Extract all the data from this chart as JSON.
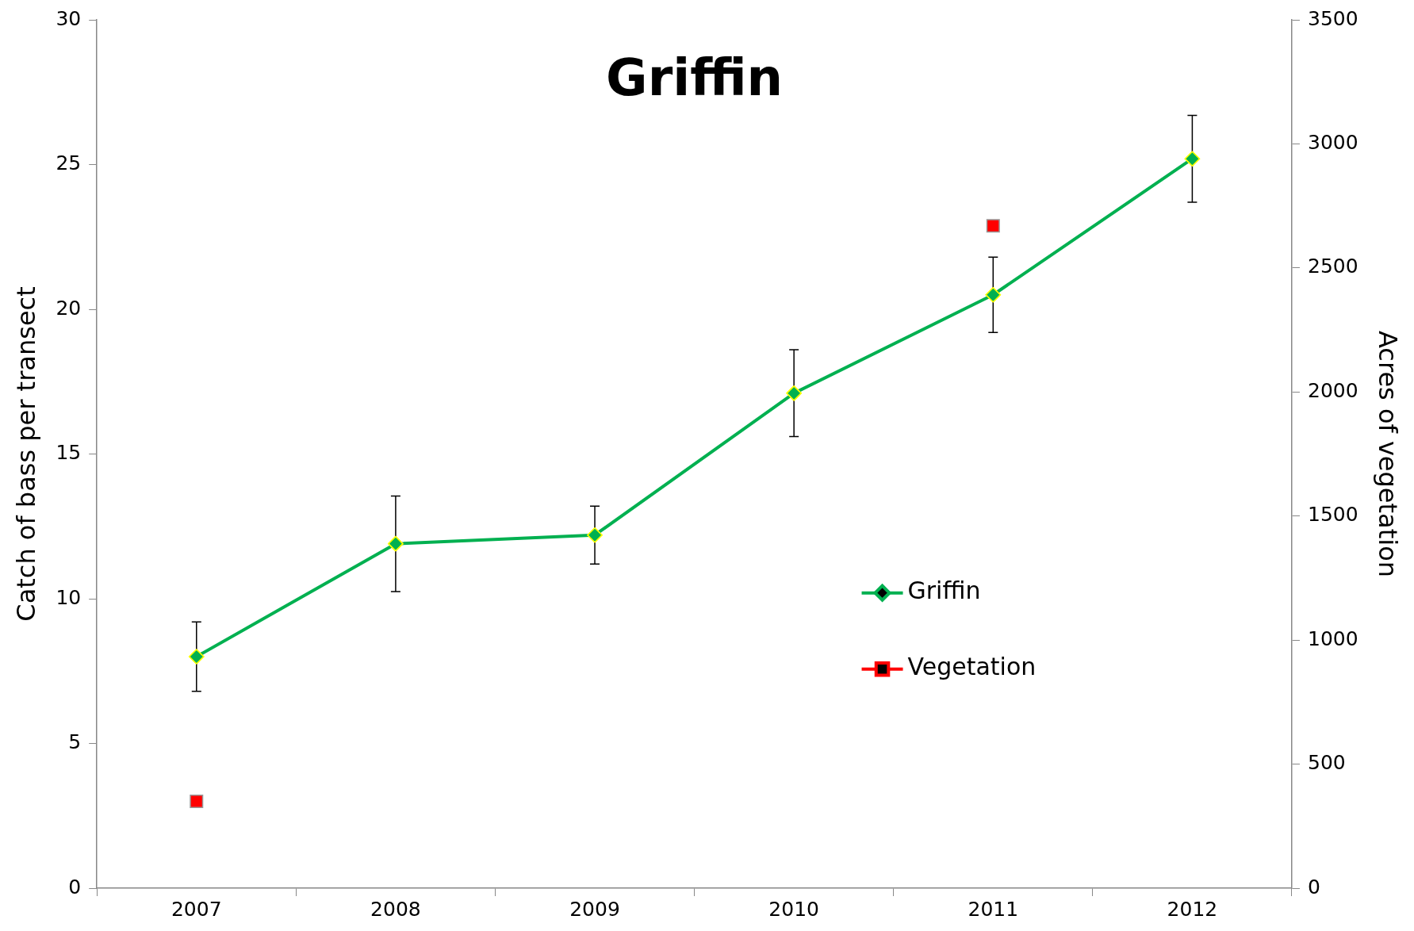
{
  "chart_data": {
    "type": "line",
    "title": "Griffin",
    "ylabel": "Catch of bass per transect",
    "y2label": "Acres of vegetation",
    "categories": [
      "2007",
      "2008",
      "2009",
      "2010",
      "2011",
      "2012"
    ],
    "series": [
      {
        "name": "Griffin",
        "color": "#00b050",
        "marker": "diamond",
        "values": [
          8.0,
          11.9,
          12.2,
          17.1,
          20.5,
          25.2
        ],
        "errors": [
          1.2,
          1.65,
          1.0,
          1.5,
          1.3,
          1.5
        ]
      },
      {
        "name": "Vegetation",
        "color": "#ff0000",
        "marker": "square",
        "axis": "y2",
        "values": [
          350,
          null,
          null,
          null,
          2670,
          null
        ]
      }
    ],
    "ylim": [
      0,
      30
    ],
    "yticks": [
      0,
      5,
      10,
      15,
      20,
      25,
      30
    ],
    "y2lim": [
      0,
      3500
    ],
    "y2ticks": [
      0,
      500,
      1000,
      1500,
      2000,
      2500,
      3000,
      3500
    ],
    "legend": "bottom right",
    "grid": false
  }
}
